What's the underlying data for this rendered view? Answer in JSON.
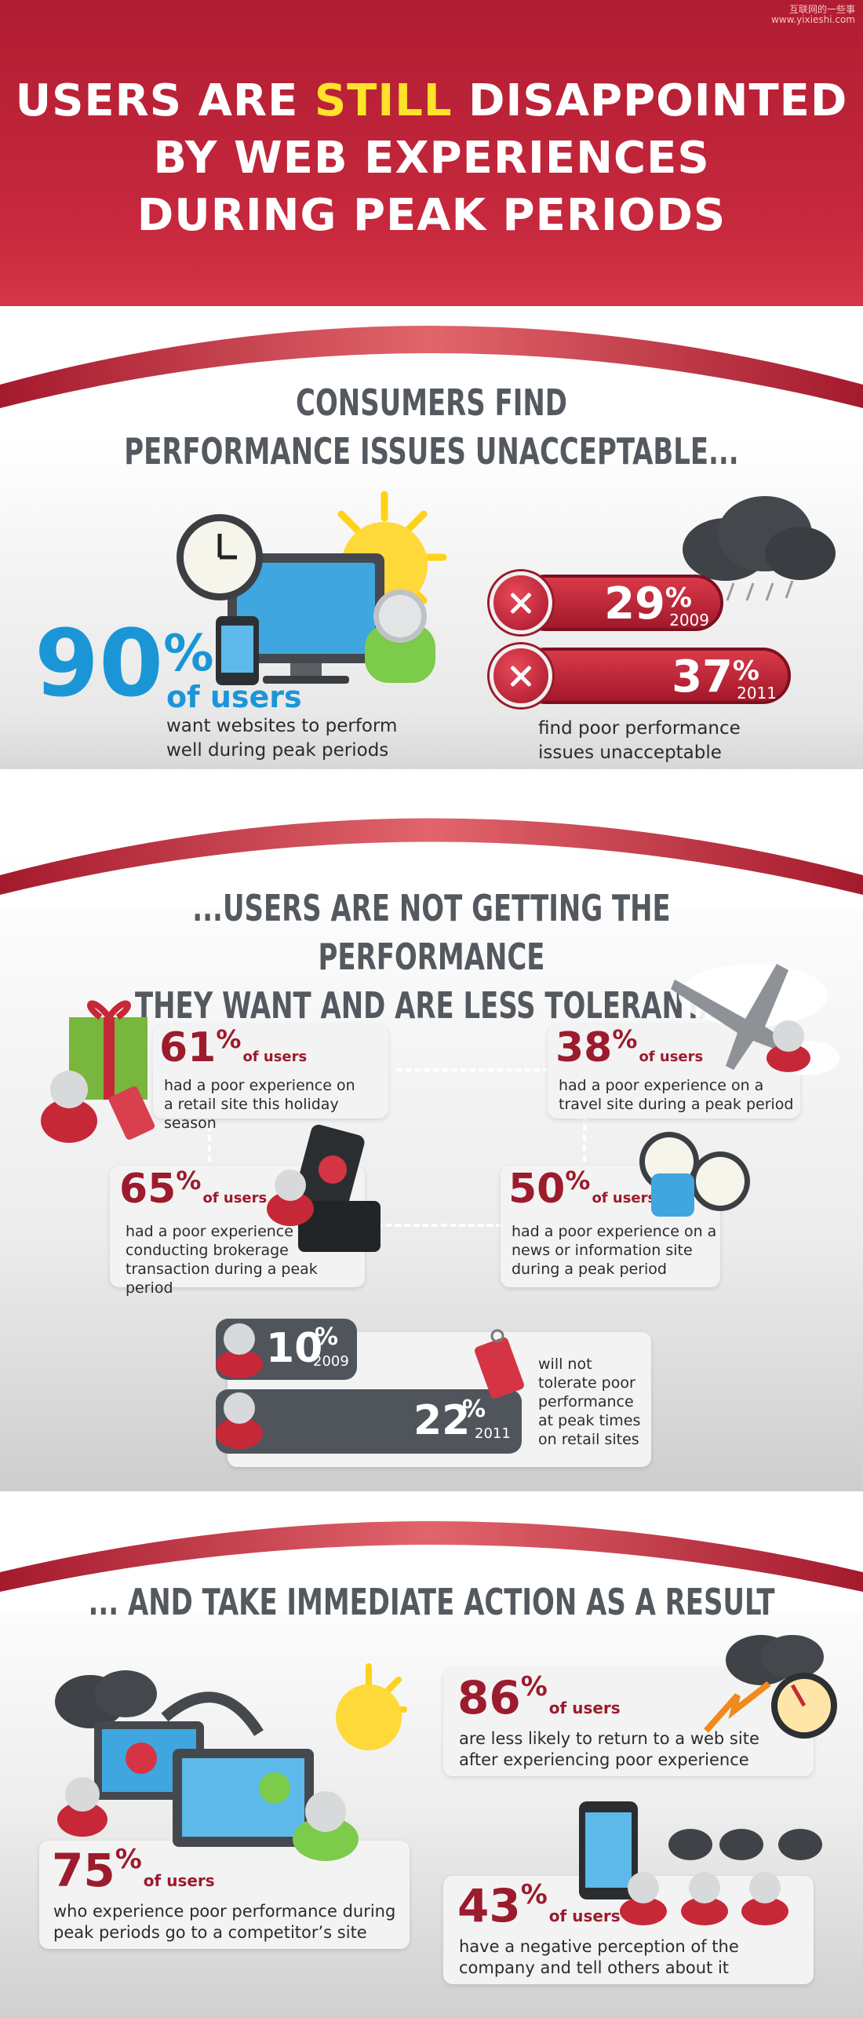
{
  "watermark": {
    "line1": "互联网的一些事",
    "line2": "www.yixieshi.com"
  },
  "header": {
    "title_pre": "USERS ARE ",
    "title_hl": "STILL",
    "title_post": " DISAPPOINTED",
    "title_line2": "BY WEB EXPERIENCES",
    "title_line3": "DURING PEAK PERIODS"
  },
  "section1": {
    "title_line1": "CONSUMERS FIND",
    "title_line2": "PERFORMANCE ISSUES UNACCEPTABLE...",
    "big_stat": {
      "value": "90",
      "pct": "%",
      "unit": "of users",
      "desc_line1": "want websites to perform",
      "desc_line2": "well during peak periods"
    },
    "pills": [
      {
        "value": "29",
        "pct": "%",
        "year": "2009"
      },
      {
        "value": "37",
        "pct": "%",
        "year": "2011"
      }
    ],
    "pills_desc_line1": "find poor performance",
    "pills_desc_line2": "issues unacceptable"
  },
  "section2": {
    "title_line1": "...USERS ARE NOT GETTING THE PERFORMANCE",
    "title_line2": "THEY WANT AND ARE LESS TOLERANT...",
    "stats": [
      {
        "value": "61",
        "pct": "%",
        "unit": "of users",
        "line1": "had a poor experience on",
        "line2": "a retail site this holiday season",
        "line3": ""
      },
      {
        "value": "38",
        "pct": "%",
        "unit": "of users",
        "line1": "had a poor experience on a",
        "line2": "travel site during a peak period",
        "line3": ""
      },
      {
        "value": "65",
        "pct": "%",
        "unit": "of users",
        "line1": "had a poor experience",
        "line2": "conducting brokerage",
        "line3": "transaction during a peak period"
      },
      {
        "value": "50",
        "pct": "%",
        "unit": "of users",
        "line1": "had a poor experience on a",
        "line2": "news or information site",
        "line3": "during a peak period"
      }
    ],
    "tolerance": {
      "pills": [
        {
          "value": "10",
          "pct": "%",
          "year": "2009"
        },
        {
          "value": "22",
          "pct": "%",
          "year": "2011"
        }
      ],
      "desc": [
        "will not",
        "tolerate poor",
        "performance",
        "at peak times",
        "on retail sites"
      ]
    }
  },
  "section3": {
    "title": "... AND TAKE IMMEDIATE ACTION AS A RESULT",
    "stats": [
      {
        "value": "86",
        "pct": "%",
        "unit": "of users",
        "line1": "are less likely to return to a web site",
        "line2": "after experiencing poor experience"
      },
      {
        "value": "75",
        "pct": "%",
        "unit": "of users",
        "line1": "who experience poor performance during",
        "line2": "peak periods go to a competitor’s site"
      },
      {
        "value": "43",
        "pct": "%",
        "unit": "of users",
        "line1": "have a negative perception of the",
        "line2": "company and tell others about it"
      }
    ]
  },
  "colors": {
    "red": "#b01d32",
    "dark_red": "#9c1b2c",
    "blue": "#1a96d7",
    "gray_title": "#54595f",
    "highlight": "#ffe22a"
  }
}
